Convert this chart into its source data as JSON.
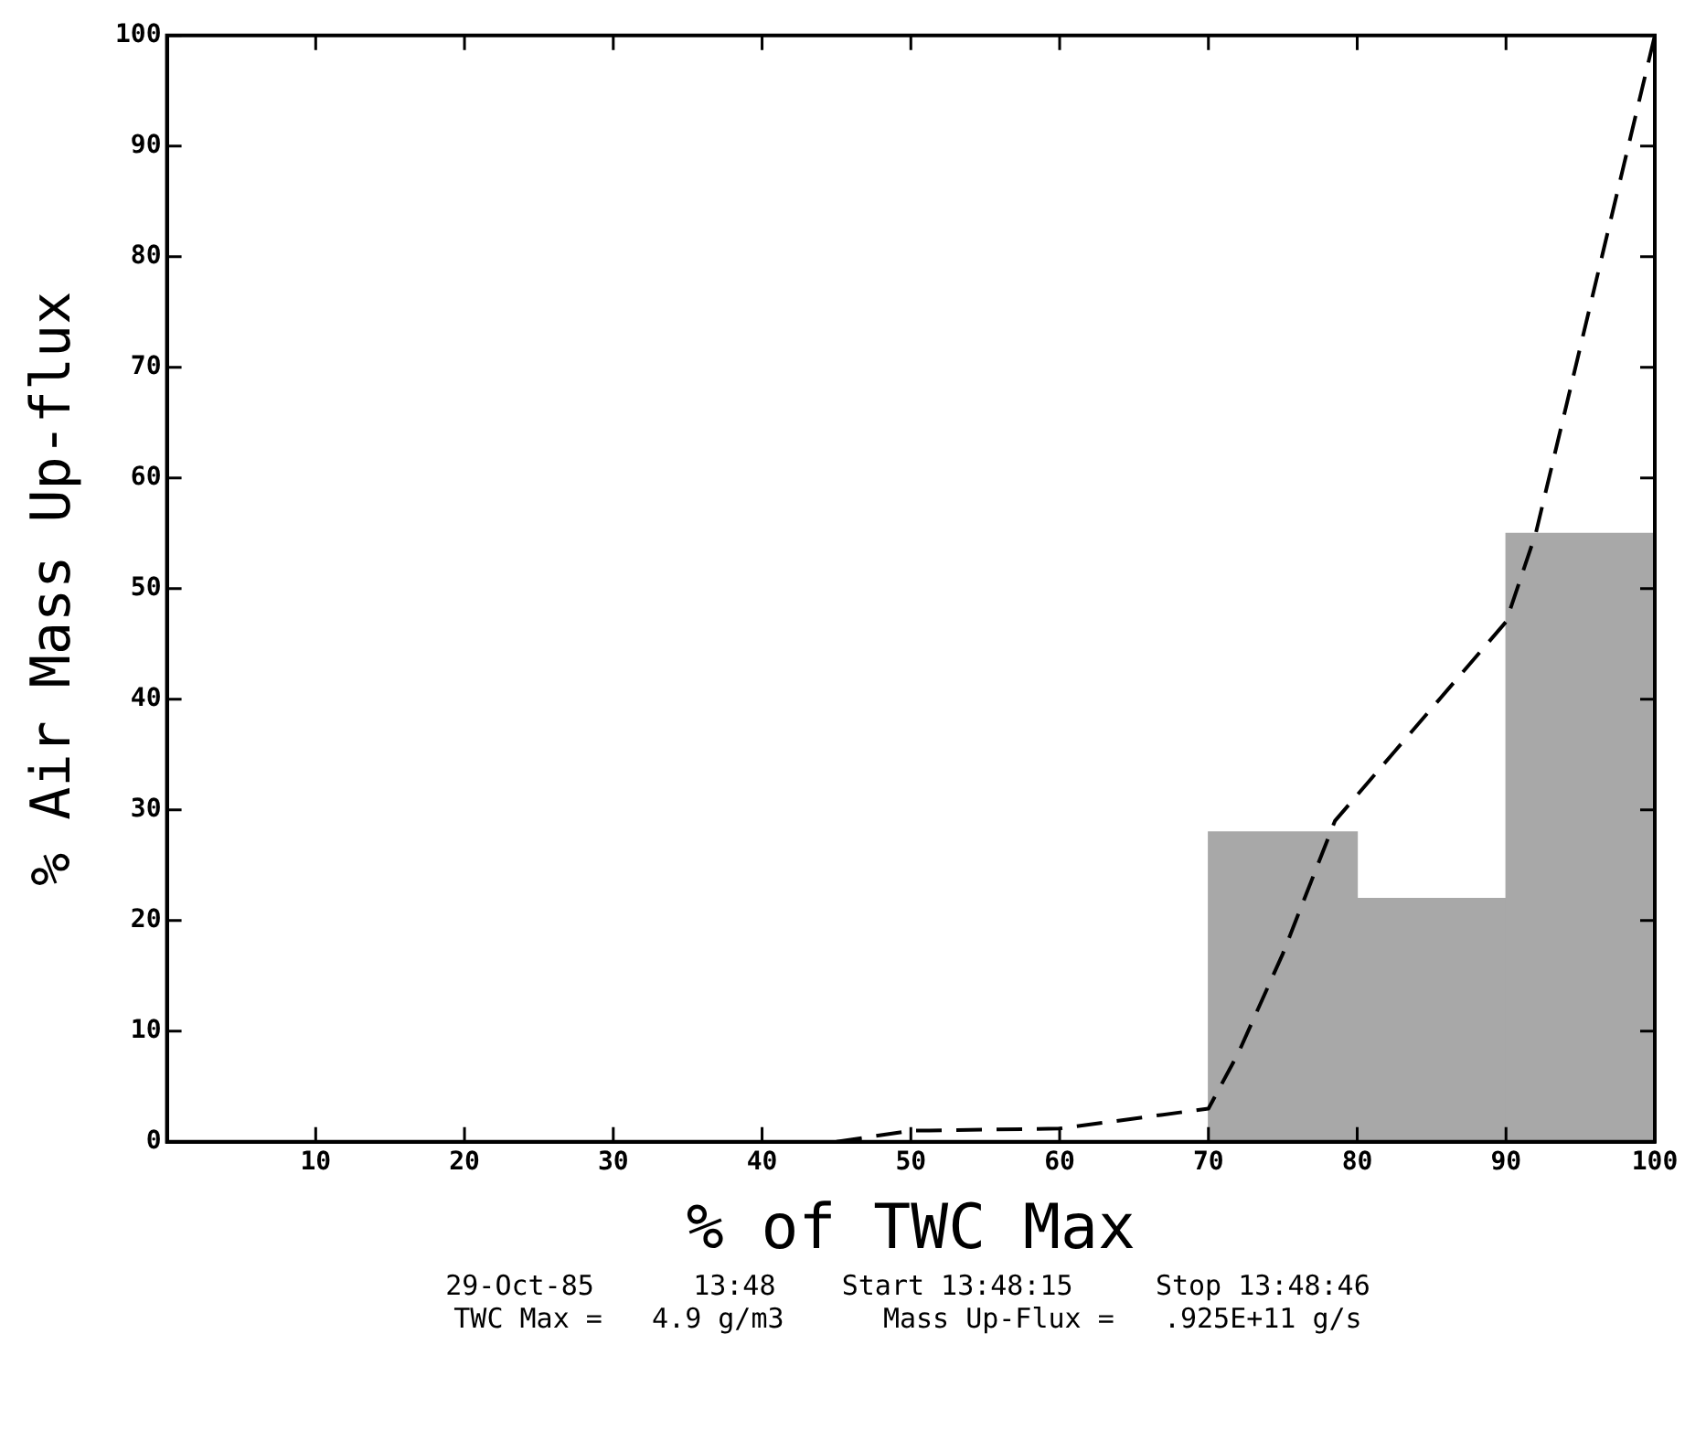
{
  "chart_data": {
    "type": "histogram",
    "xlabel": "% of TWC Max",
    "ylabel": "% Air Mass Up-flux",
    "bins": [
      0,
      10,
      20,
      30,
      40,
      50,
      60,
      70,
      80,
      90,
      100
    ],
    "values": [
      0,
      0,
      0,
      0,
      0,
      0,
      0,
      28,
      22,
      55
    ],
    "color": "#a8a8a8",
    "series": [
      {
        "type": "line",
        "color": "#000000",
        "line_style": "dashed",
        "marker": "none",
        "x": [
          45,
          50,
          60,
          70,
          72,
          75,
          78.5,
          90,
          92,
          100
        ],
        "values": [
          0,
          1,
          1.2,
          3,
          8,
          17,
          29,
          47,
          55,
          100
        ]
      }
    ],
    "xlim": [
      0,
      100
    ],
    "xticks": [
      10,
      20,
      30,
      40,
      50,
      60,
      70,
      80,
      90,
      100
    ],
    "ylim": [
      0,
      100
    ],
    "yticks": [
      0,
      10,
      20,
      30,
      40,
      50,
      60,
      70,
      80,
      90,
      100
    ],
    "grid": false,
    "legend": false,
    "annotations": [
      "29-Oct-85      13:48    Start 13:48:15     Stop 13:48:46",
      "TWC Max =   4.9 g/m3      Mass Up-Flux =   .925E+11 g/s"
    ]
  }
}
